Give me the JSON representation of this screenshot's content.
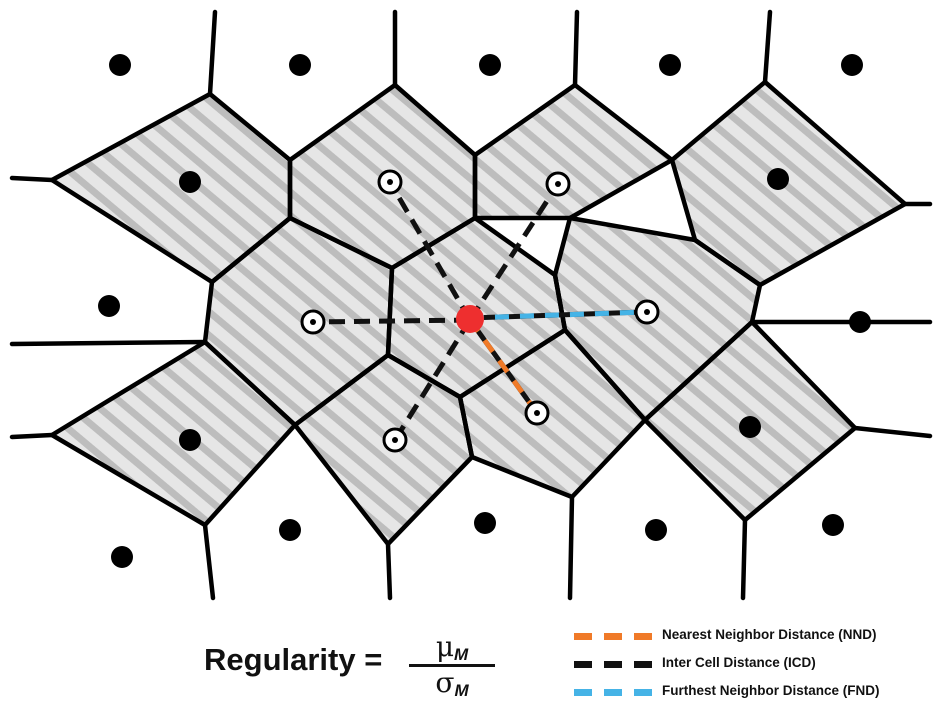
{
  "formula": {
    "lhs": "Regularity =",
    "numerator_symbol": "μ",
    "numerator_sub": "M",
    "denominator_symbol": "σ",
    "denominator_sub": "M"
  },
  "legend": [
    {
      "label": "Nearest Neighbor Distance (NND)",
      "color": "#f07a28"
    },
    {
      "label": "Inter Cell Distance (ICD)",
      "color": "#111111"
    },
    {
      "label": "Furthest Neighbor Distance (FND)",
      "color": "#45b3e6"
    }
  ],
  "colors": {
    "cell_edge": "#000000",
    "cell_fill": "#e6e6e6",
    "stripe": "#bdbdbd",
    "center_cell": "#ee2f2f"
  }
}
